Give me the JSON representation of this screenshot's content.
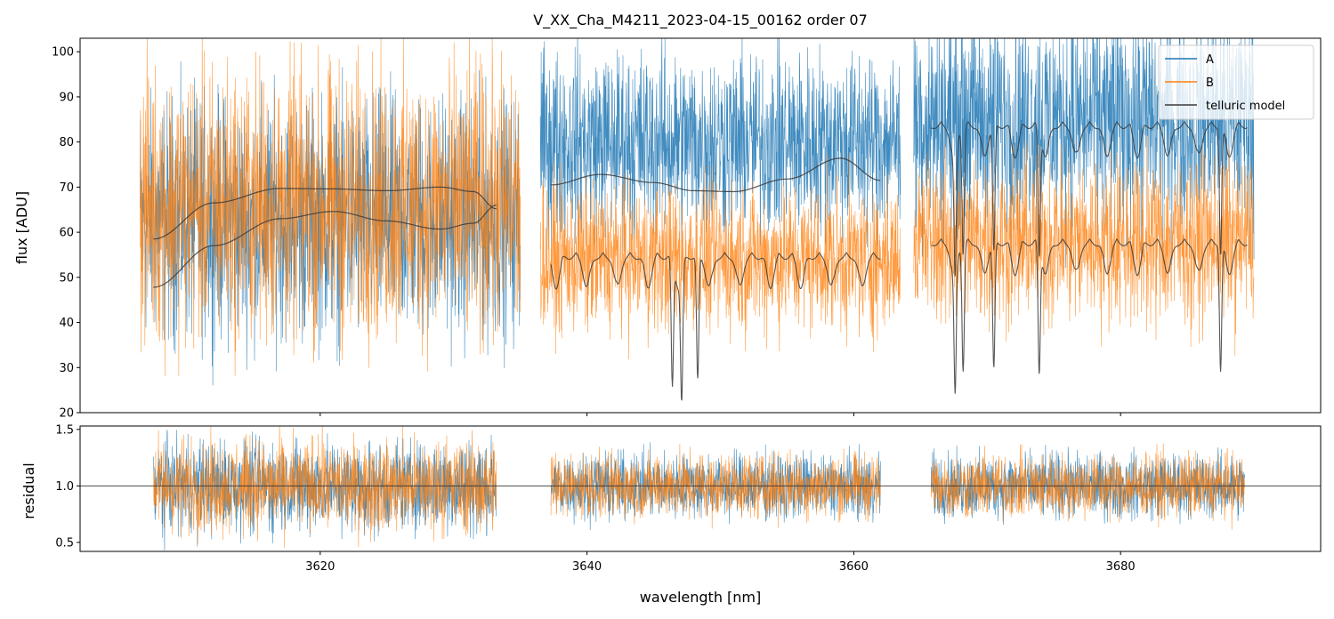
{
  "chart_data": [
    {
      "panel": "top",
      "type": "line",
      "title": "V_XX_Cha_M4211_2023-04-15_00162  order 07",
      "xlabel": "",
      "ylabel": "flux [ADU]",
      "xlim": [
        3602,
        3695
      ],
      "ylim": [
        20,
        103
      ],
      "yticks": [
        "20",
        "30",
        "40",
        "50",
        "60",
        "70",
        "80",
        "90",
        "100"
      ],
      "xticks": [
        3620,
        3640,
        3660,
        3680
      ],
      "legend": {
        "position": "top-right",
        "entries": [
          "A",
          "B",
          "telluric model"
        ]
      },
      "segments": [
        {
          "range": [
            3606.5,
            3635.0
          ],
          "A_mean": 63,
          "B_mean": 66,
          "A_noise": 13,
          "B_noise": 15,
          "A_continuum": [
            [
              3607.5,
              47.8
            ],
            [
              3612,
              57
            ],
            [
              3617,
              63
            ],
            [
              3621,
              64.6
            ],
            [
              3625,
              62.5
            ],
            [
              3629,
              60.7
            ],
            [
              3631.5,
              62
            ],
            [
              3633.2,
              66
            ]
          ],
          "B_continuum": [
            [
              3607.5,
              58.5
            ],
            [
              3612,
              66.5
            ],
            [
              3617,
              69.7
            ],
            [
              3621,
              69.6
            ],
            [
              3625,
              69.2
            ],
            [
              3629,
              70.0
            ],
            [
              3631.5,
              69
            ],
            [
              3633.2,
              65.2
            ]
          ]
        },
        {
          "range": [
            3636.5,
            3663.5
          ],
          "A_mean": 80,
          "B_mean": 54,
          "A_noise": 10,
          "B_noise": 8,
          "A_continuum": [
            [
              3637.3,
              70.5
            ],
            [
              3641,
              72.8
            ],
            [
              3645,
              71
            ],
            [
              3648,
              69.2
            ],
            [
              3651,
              69
            ],
            [
              3655,
              71.8
            ],
            [
              3659,
              76.4
            ],
            [
              3662,
              71.5
            ]
          ],
          "B_telluric": {
            "level": 55.5,
            "start": 3637.3,
            "end": 3662
          }
        },
        {
          "range": [
            3664.5,
            3690.0
          ],
          "A_mean": 85,
          "B_mean": 58,
          "A_noise": 12,
          "B_noise": 9,
          "A_telluric": {
            "level": 84.5,
            "start": 3665.8,
            "end": 3689.5
          },
          "B_telluric": {
            "level": 58.5,
            "start": 3665.8,
            "end": 3689.5
          }
        }
      ],
      "series": [
        {
          "name": "A",
          "color": "#1f77b4"
        },
        {
          "name": "B",
          "color": "#ff7f0e"
        },
        {
          "name": "telluric model",
          "color": "#3a3a3a"
        }
      ]
    },
    {
      "panel": "bottom",
      "type": "line",
      "xlabel": "wavelength [nm]",
      "ylabel": "residual",
      "xlim": [
        3602,
        3695
      ],
      "ylim": [
        0.42,
        1.53
      ],
      "yticks": [
        "0.5",
        "1.0",
        "1.5"
      ],
      "xticks": [
        "3620",
        "3640",
        "3660",
        "3680"
      ],
      "reference_line": 1.0,
      "segments": [
        {
          "range": [
            3607.5,
            3633.2
          ],
          "noise": 0.2
        },
        {
          "range": [
            3637.3,
            3662.0
          ],
          "noise": 0.14
        },
        {
          "range": [
            3665.8,
            3689.3
          ],
          "noise": 0.14
        }
      ]
    }
  ]
}
